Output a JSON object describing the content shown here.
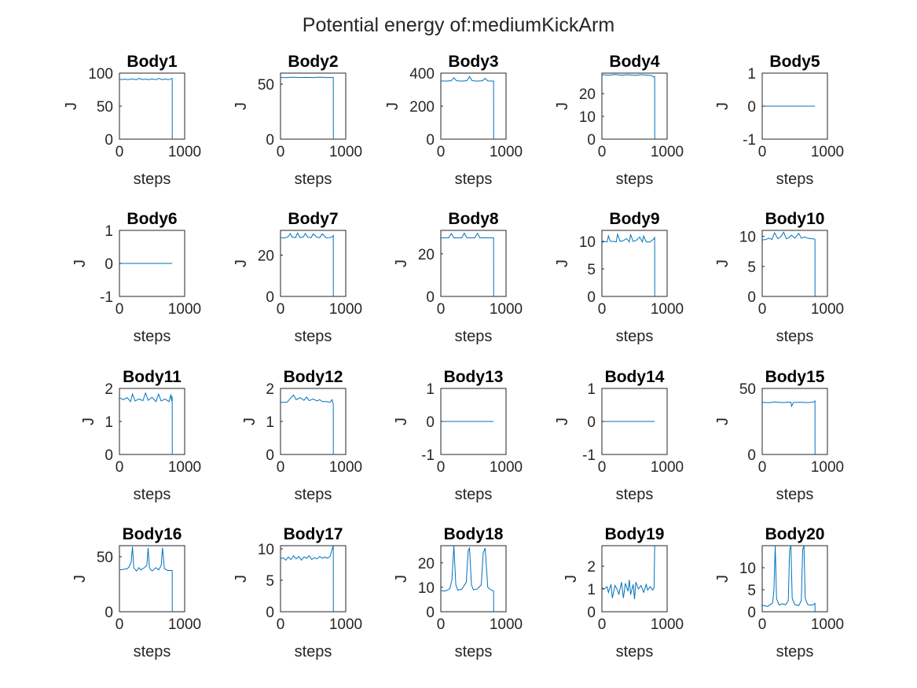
{
  "figure_title": "Potential energy of:mediumKickArm",
  "chart_data": [
    {
      "type": "line",
      "title": "Body1",
      "xlabel": "steps",
      "ylabel": "J",
      "xlim": [
        0,
        1000
      ],
      "ylim": [
        0,
        100
      ],
      "xticks": [
        "0",
        "1000"
      ],
      "yticks": [
        "0",
        "50",
        "100"
      ],
      "color": "#0072BD",
      "series": [
        {
          "x": [
            0,
            40,
            80,
            120,
            200,
            260,
            300,
            360,
            400,
            450,
            500,
            560,
            600,
            650,
            700,
            760,
            800,
            809,
            810
          ],
          "y": [
            91,
            90,
            91,
            90,
            91,
            90,
            92,
            90,
            91,
            90,
            91,
            90,
            92,
            90,
            91,
            90,
            92,
            92,
            0
          ]
        }
      ]
    },
    {
      "type": "line",
      "title": "Body2",
      "xlabel": "steps",
      "ylabel": "J",
      "xlim": [
        0,
        1000
      ],
      "ylim": [
        0,
        60
      ],
      "xticks": [
        "0",
        "1000"
      ],
      "yticks": [
        "0",
        "50"
      ],
      "color": "#0072BD",
      "series": [
        {
          "x": [
            0,
            100,
            200,
            300,
            400,
            500,
            600,
            700,
            800,
            809,
            810
          ],
          "y": [
            56,
            56,
            56.3,
            56,
            56.2,
            56,
            56.3,
            56,
            56.2,
            56,
            0
          ]
        }
      ]
    },
    {
      "type": "line",
      "title": "Body3",
      "xlabel": "steps",
      "ylabel": "J",
      "xlim": [
        0,
        1000
      ],
      "ylim": [
        0,
        400
      ],
      "xticks": [
        "0",
        "1000"
      ],
      "yticks": [
        "0",
        "200",
        "400"
      ],
      "color": "#0072BD",
      "series": [
        {
          "x": [
            0,
            80,
            160,
            200,
            240,
            320,
            400,
            440,
            480,
            560,
            640,
            680,
            720,
            800,
            809,
            810
          ],
          "y": [
            353,
            352,
            354,
            372,
            354,
            352,
            354,
            380,
            354,
            352,
            354,
            368,
            353,
            352,
            353,
            0
          ]
        }
      ]
    },
    {
      "type": "line",
      "title": "Body4",
      "xlabel": "steps",
      "ylabel": "J",
      "xlim": [
        0,
        1000
      ],
      "ylim": [
        0,
        29
      ],
      "xticks": [
        "0",
        "1000"
      ],
      "yticks": [
        "0",
        "10",
        "20"
      ],
      "color": "#0072BD",
      "series": [
        {
          "x": [
            0,
            100,
            200,
            300,
            400,
            500,
            600,
            700,
            760,
            790,
            809,
            810
          ],
          "y": [
            28.3,
            28.1,
            28.4,
            28.1,
            28.3,
            28,
            28.3,
            28.1,
            28,
            27.3,
            27.5,
            0
          ]
        }
      ]
    },
    {
      "type": "line",
      "title": "Body5",
      "xlabel": "steps",
      "ylabel": "J",
      "xlim": [
        0,
        1000
      ],
      "ylim": [
        -1,
        1
      ],
      "xticks": [
        "0",
        "1000"
      ],
      "yticks": [
        "-1",
        "0",
        "1"
      ],
      "color": "#0072BD",
      "series": [
        {
          "x": [
            0,
            809
          ],
          "y": [
            0,
            0
          ]
        }
      ]
    },
    {
      "type": "line",
      "title": "Body6",
      "xlabel": "steps",
      "ylabel": "J",
      "xlim": [
        0,
        1000
      ],
      "ylim": [
        -1,
        1
      ],
      "xticks": [
        "0",
        "1000"
      ],
      "yticks": [
        "-1",
        "0",
        "1"
      ],
      "color": "#0072BD",
      "series": [
        {
          "x": [
            0,
            809
          ],
          "y": [
            0,
            0
          ]
        }
      ]
    },
    {
      "type": "line",
      "title": "Body7",
      "xlabel": "steps",
      "ylabel": "J",
      "xlim": [
        0,
        1000
      ],
      "ylim": [
        0,
        32
      ],
      "xticks": [
        "0",
        "1000"
      ],
      "yticks": [
        "0",
        "20"
      ],
      "color": "#0072BD",
      "series": [
        {
          "x": [
            0,
            60,
            120,
            150,
            180,
            230,
            260,
            300,
            350,
            380,
            420,
            470,
            500,
            560,
            600,
            640,
            700,
            760,
            800,
            809,
            810
          ],
          "y": [
            28.5,
            28.3,
            29,
            30.5,
            28.7,
            28.5,
            30.7,
            28.5,
            28.8,
            30.5,
            28.6,
            28.5,
            30.3,
            28.6,
            28.5,
            30.3,
            28.4,
            28.5,
            29,
            29.5,
            0
          ]
        }
      ]
    },
    {
      "type": "line",
      "title": "Body8",
      "xlabel": "steps",
      "ylabel": "J",
      "xlim": [
        0,
        1000
      ],
      "ylim": [
        0,
        31
      ],
      "xticks": [
        "0",
        "1000"
      ],
      "yticks": [
        "0",
        "20"
      ],
      "color": "#0072BD",
      "series": [
        {
          "x": [
            0,
            120,
            160,
            200,
            320,
            360,
            400,
            520,
            560,
            600,
            700,
            800,
            809,
            810
          ],
          "y": [
            27.5,
            27.5,
            29.5,
            27.5,
            27.5,
            29.7,
            27.5,
            27.5,
            29.6,
            27.5,
            27.5,
            27.5,
            27.5,
            0
          ]
        }
      ]
    },
    {
      "type": "line",
      "title": "Body9",
      "xlabel": "steps",
      "ylabel": "J",
      "xlim": [
        0,
        1000
      ],
      "ylim": [
        0,
        12
      ],
      "xticks": [
        "0",
        "1000"
      ],
      "yticks": [
        "0",
        "5",
        "10"
      ],
      "color": "#0072BD",
      "series": [
        {
          "x": [
            0,
            40,
            80,
            100,
            130,
            180,
            220,
            240,
            280,
            320,
            380,
            420,
            440,
            480,
            530,
            580,
            620,
            640,
            680,
            740,
            780,
            800,
            809,
            810
          ],
          "y": [
            9.8,
            10,
            9.9,
            11,
            10,
            10,
            9.9,
            11.3,
            10,
            10.1,
            10.5,
            9.9,
            11.2,
            10,
            10.2,
            10.8,
            9.9,
            11,
            9.9,
            9.9,
            10.3,
            10.5,
            10.8,
            0
          ]
        }
      ]
    },
    {
      "type": "line",
      "title": "Body10",
      "xlabel": "steps",
      "ylabel": "J",
      "xlim": [
        0,
        1000
      ],
      "ylim": [
        0,
        11
      ],
      "xticks": [
        "0",
        "1000"
      ],
      "yticks": [
        "0",
        "5",
        "10"
      ],
      "color": "#0072BD",
      "series": [
        {
          "x": [
            0,
            60,
            100,
            150,
            190,
            240,
            280,
            330,
            370,
            410,
            450,
            500,
            560,
            600,
            650,
            700,
            760,
            800,
            809,
            810
          ],
          "y": [
            9.4,
            9.5,
            9.7,
            9.5,
            10.6,
            9.6,
            9.9,
            10.7,
            9.6,
            9.8,
            10.2,
            9.7,
            10.5,
            9.7,
            9.9,
            9.7,
            9.6,
            9.6,
            9.5,
            0
          ]
        }
      ]
    },
    {
      "type": "line",
      "title": "Body11",
      "xlabel": "steps",
      "ylabel": "J",
      "xlim": [
        0,
        1000
      ],
      "ylim": [
        0,
        2
      ],
      "xticks": [
        "0",
        "1000"
      ],
      "yticks": [
        "0",
        "1",
        "2"
      ],
      "color": "#0072BD",
      "series": [
        {
          "x": [
            0,
            60,
            120,
            170,
            200,
            240,
            300,
            360,
            400,
            440,
            500,
            560,
            600,
            640,
            700,
            760,
            790,
            800,
            809,
            810
          ],
          "y": [
            1.72,
            1.66,
            1.72,
            1.6,
            1.83,
            1.62,
            1.68,
            1.63,
            1.86,
            1.64,
            1.73,
            1.6,
            1.83,
            1.62,
            1.68,
            1.6,
            1.82,
            1.62,
            1.75,
            0
          ]
        }
      ]
    },
    {
      "type": "line",
      "title": "Body12",
      "xlabel": "steps",
      "ylabel": "J",
      "xlim": [
        0,
        1000
      ],
      "ylim": [
        0,
        2
      ],
      "xticks": [
        "0",
        "1000"
      ],
      "yticks": [
        "0",
        "1",
        "2"
      ],
      "color": "#0072BD",
      "series": [
        {
          "x": [
            0,
            100,
            160,
            200,
            240,
            300,
            360,
            400,
            440,
            500,
            560,
            600,
            640,
            700,
            760,
            790,
            809,
            810
          ],
          "y": [
            1.58,
            1.58,
            1.72,
            1.8,
            1.66,
            1.72,
            1.64,
            1.74,
            1.63,
            1.68,
            1.62,
            1.66,
            1.6,
            1.6,
            1.58,
            1.66,
            1.52,
            0
          ]
        }
      ]
    },
    {
      "type": "line",
      "title": "Body13",
      "xlabel": "steps",
      "ylabel": "J",
      "xlim": [
        0,
        1000
      ],
      "ylim": [
        -1,
        1
      ],
      "xticks": [
        "0",
        "1000"
      ],
      "yticks": [
        "-1",
        "0",
        "1"
      ],
      "color": "#0072BD",
      "series": [
        {
          "x": [
            0,
            809
          ],
          "y": [
            0,
            0
          ]
        }
      ]
    },
    {
      "type": "line",
      "title": "Body14",
      "xlabel": "steps",
      "ylabel": "J",
      "xlim": [
        0,
        1000
      ],
      "ylim": [
        -1,
        1
      ],
      "xticks": [
        "0",
        "1000"
      ],
      "yticks": [
        "-1",
        "0",
        "1"
      ],
      "color": "#0072BD",
      "series": [
        {
          "x": [
            0,
            809
          ],
          "y": [
            0,
            0
          ]
        }
      ]
    },
    {
      "type": "line",
      "title": "Body15",
      "xlabel": "steps",
      "ylabel": "J",
      "xlim": [
        0,
        1000
      ],
      "ylim": [
        0,
        50
      ],
      "xticks": [
        "0",
        "1000"
      ],
      "yticks": [
        "0",
        "50"
      ],
      "color": "#0072BD",
      "series": [
        {
          "x": [
            0,
            100,
            200,
            300,
            400,
            440,
            450,
            480,
            560,
            640,
            700,
            760,
            800,
            809,
            810
          ],
          "y": [
            39.5,
            39.2,
            39.8,
            39.3,
            39.6,
            39.6,
            36.5,
            39.4,
            39.5,
            39.4,
            39.3,
            39.5,
            40,
            40.5,
            0
          ]
        }
      ]
    },
    {
      "type": "line",
      "title": "Body16",
      "xlabel": "steps",
      "ylabel": "J",
      "xlim": [
        0,
        1000
      ],
      "ylim": [
        0,
        60
      ],
      "xticks": [
        "0",
        "1000"
      ],
      "yticks": [
        "0",
        "50"
      ],
      "color": "#0072BD",
      "series": [
        {
          "x": [
            0,
            60,
            120,
            150,
            180,
            200,
            220,
            260,
            300,
            330,
            380,
            420,
            440,
            460,
            500,
            560,
            600,
            640,
            660,
            690,
            740,
            800,
            809,
            810
          ],
          "y": [
            38,
            38.5,
            39,
            41,
            45,
            59,
            40,
            37,
            40,
            38,
            40,
            42,
            58,
            40,
            37,
            40,
            38,
            42,
            58,
            39,
            37.5,
            37.5,
            37.5,
            0
          ]
        }
      ]
    },
    {
      "type": "line",
      "title": "Body17",
      "xlabel": "steps",
      "ylabel": "J",
      "xlim": [
        0,
        1000
      ],
      "ylim": [
        0,
        10.5
      ],
      "xticks": [
        "0",
        "1000"
      ],
      "yticks": [
        "0",
        "5",
        "10"
      ],
      "color": "#0072BD",
      "series": [
        {
          "x": [
            0,
            40,
            80,
            120,
            160,
            200,
            240,
            280,
            320,
            360,
            400,
            440,
            480,
            520,
            560,
            600,
            640,
            680,
            720,
            760,
            800,
            809,
            810
          ],
          "y": [
            8.4,
            8.6,
            8.2,
            8.7,
            8.3,
            8.9,
            8.4,
            8.8,
            8.2,
            8.7,
            8.5,
            8.9,
            8.3,
            8.6,
            8.4,
            8.8,
            8.5,
            8.7,
            8.5,
            8.8,
            10.2,
            10.5,
            0
          ]
        }
      ]
    },
    {
      "type": "line",
      "title": "Body18",
      "xlabel": "steps",
      "ylabel": "J",
      "xlim": [
        0,
        1000
      ],
      "ylim": [
        0,
        27
      ],
      "xticks": [
        "0",
        "1000"
      ],
      "yticks": [
        "0",
        "10",
        "20"
      ],
      "color": "#0072BD",
      "series": [
        {
          "x": [
            0,
            80,
            140,
            170,
            200,
            230,
            260,
            320,
            390,
            420,
            440,
            470,
            500,
            560,
            620,
            650,
            680,
            720,
            760,
            809,
            810
          ],
          "y": [
            8.5,
            8.5,
            9.5,
            13,
            27,
            11,
            8.8,
            9.2,
            12,
            25,
            26,
            11,
            9,
            9.3,
            11,
            24,
            26,
            10,
            9,
            8.5,
            0
          ]
        }
      ]
    },
    {
      "type": "line",
      "title": "Body19",
      "xlabel": "steps",
      "ylabel": "J",
      "xlim": [
        0,
        1000
      ],
      "ylim": [
        0,
        2.9
      ],
      "xticks": [
        "0",
        "1000"
      ],
      "yticks": [
        "0",
        "1",
        "2"
      ],
      "color": "#0072BD",
      "series": [
        {
          "x": [
            0,
            40,
            80,
            100,
            140,
            160,
            200,
            240,
            260,
            300,
            330,
            360,
            400,
            420,
            440,
            480,
            500,
            520,
            560,
            600,
            640,
            680,
            700,
            740,
            780,
            800,
            809
          ],
          "y": [
            1.05,
            1.0,
            1.1,
            0.85,
            1.2,
            0.6,
            1.15,
            0.95,
            0.75,
            1.3,
            0.6,
            1.25,
            0.9,
            1.4,
            0.75,
            1.2,
            0.55,
            1.3,
            1.0,
            1.15,
            0.85,
            1.2,
            0.95,
            1.1,
            0.95,
            1.05,
            2.9
          ]
        }
      ]
    },
    {
      "type": "line",
      "title": "Body20",
      "xlabel": "steps",
      "ylabel": "J",
      "xlim": [
        0,
        1000
      ],
      "ylim": [
        0,
        15
      ],
      "xticks": [
        "0",
        "1000"
      ],
      "yticks": [
        "0",
        "5",
        "10"
      ],
      "color": "#0072BD",
      "series": [
        {
          "x": [
            0,
            80,
            120,
            160,
            180,
            200,
            220,
            260,
            300,
            360,
            400,
            420,
            440,
            460,
            500,
            560,
            600,
            620,
            640,
            660,
            700,
            760,
            800,
            809,
            810
          ],
          "y": [
            1.5,
            1.2,
            1.6,
            2,
            5,
            15,
            3,
            1.5,
            1.8,
            1.6,
            2.5,
            14,
            15,
            3,
            1.6,
            1.4,
            2.5,
            14,
            15,
            3,
            1.6,
            1.5,
            1.7,
            2,
            0
          ]
        }
      ]
    }
  ]
}
